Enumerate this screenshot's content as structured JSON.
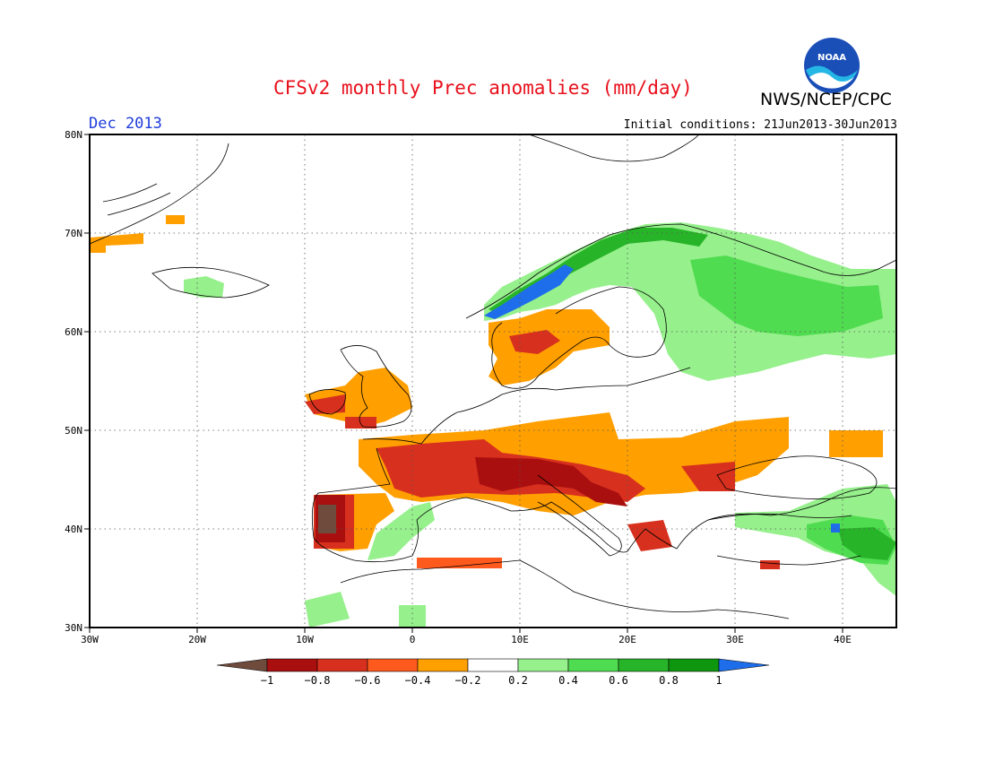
{
  "header": {
    "title": "CFSv2 monthly Prec anomalies (mm/day)",
    "agency": "NWS/NCEP/CPC",
    "month": "Dec 2013",
    "initial_conditions": "Initial conditions: 21Jun2013-30Jun2013",
    "logo_text": "NOAA"
  },
  "map": {
    "lon_range": [
      -30,
      45
    ],
    "lat_range": [
      30,
      80
    ],
    "lat_ticks": [
      "30N",
      "40N",
      "50N",
      "60N",
      "70N",
      "80N"
    ],
    "lon_ticks": [
      "30W",
      "20W",
      "10W",
      "0",
      "10E",
      "20E",
      "30E",
      "40E"
    ],
    "grid": true
  },
  "legend": {
    "labels": [
      "−1",
      "−0.8",
      "−0.6",
      "−0.4",
      "−0.2",
      "0.2",
      "0.4",
      "0.6",
      "0.8",
      "1"
    ],
    "colors": [
      "#6e4b3c",
      "#aa0f0f",
      "#d7301e",
      "#ff5a1e",
      "#ff9f00",
      "#ffffff",
      "#96f08c",
      "#50dc50",
      "#28b428",
      "#0f960f",
      "#1e6eeb"
    ]
  }
}
